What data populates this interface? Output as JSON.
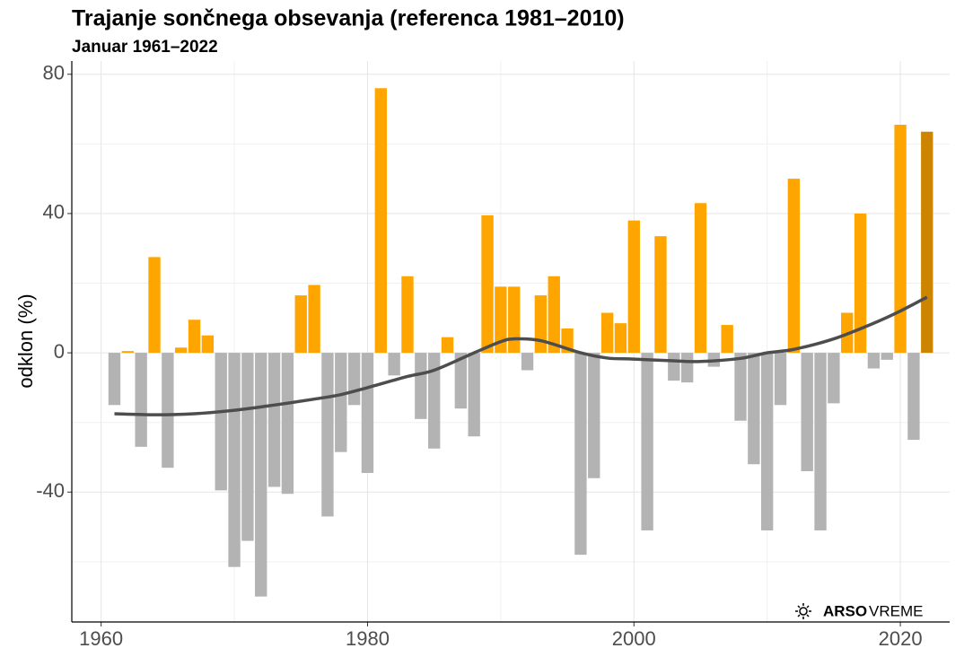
{
  "chart_data": {
    "type": "bar",
    "title": "Trajanje sončnega obsevanja (referenca 1981–2010)",
    "subtitle": "Januar 1961–2022",
    "y_label": "odklon (%)",
    "x": [
      1961,
      1962,
      1963,
      1964,
      1965,
      1966,
      1967,
      1968,
      1969,
      1970,
      1971,
      1972,
      1973,
      1974,
      1975,
      1976,
      1977,
      1978,
      1979,
      1980,
      1981,
      1982,
      1983,
      1984,
      1985,
      1986,
      1987,
      1988,
      1989,
      1990,
      1991,
      1992,
      1993,
      1994,
      1995,
      1996,
      1997,
      1998,
      1999,
      2000,
      2001,
      2002,
      2003,
      2004,
      2005,
      2006,
      2007,
      2008,
      2009,
      2010,
      2011,
      2012,
      2013,
      2014,
      2015,
      2016,
      2017,
      2018,
      2019,
      2020,
      2021,
      2022
    ],
    "values": [
      -15,
      0.5,
      -27,
      27.5,
      -33,
      1.5,
      9.5,
      5,
      -39.5,
      -61.5,
      -54,
      -70,
      -38.5,
      -40.5,
      16.5,
      19.5,
      -47,
      -28.5,
      -15,
      -34.5,
      76,
      -6.5,
      22,
      -19,
      -27.5,
      4.5,
      -16,
      -24,
      39.5,
      19,
      19,
      -5,
      16.5,
      22,
      7,
      -58,
      -36,
      11.5,
      8.5,
      38,
      -51,
      33.5,
      -8,
      -8.5,
      43,
      -4,
      8,
      -19.5,
      -32,
      -51,
      -15,
      50,
      -34,
      -51,
      -14.5,
      11.5,
      40,
      -4.5,
      -2,
      65.5,
      -25,
      63.5
    ],
    "colors": {
      "positive": "#ffa500",
      "negative": "#b3b3b3",
      "highlight": "#cd8500"
    },
    "highlight_x": 2022,
    "trend": {
      "x": [
        1961,
        1964,
        1967,
        1970,
        1973,
        1976,
        1978,
        1980,
        1983,
        1985,
        1988,
        1990,
        1991,
        1993,
        1996,
        1998,
        2000,
        2003,
        2005,
        2008,
        2010,
        2012,
        2015,
        2018,
        2020,
        2022
      ],
      "values": [
        -17.5,
        -17.8,
        -17.5,
        -16.5,
        -15,
        -13.3,
        -12,
        -10,
        -6.8,
        -5,
        0,
        3.2,
        4,
        3.5,
        0,
        -1.5,
        -1.8,
        -2.3,
        -2.5,
        -1.6,
        0,
        1,
        4,
        8.5,
        12,
        16
      ],
      "color": "#4d4d4d"
    },
    "xlim": [
      1957.8,
      2023.7
    ],
    "xticks": [
      1960,
      1980,
      2000,
      2020
    ],
    "x_minor_ticks": [
      1970,
      1990,
      2010
    ],
    "ylim": [
      -77.3,
      83.8
    ],
    "yticks": [
      -40,
      0,
      40,
      80
    ],
    "y_minor_ticks": [
      -60,
      -20,
      20,
      60
    ],
    "grid": true,
    "logo": {
      "bold": "ARSO",
      "rest": "VREME"
    }
  }
}
